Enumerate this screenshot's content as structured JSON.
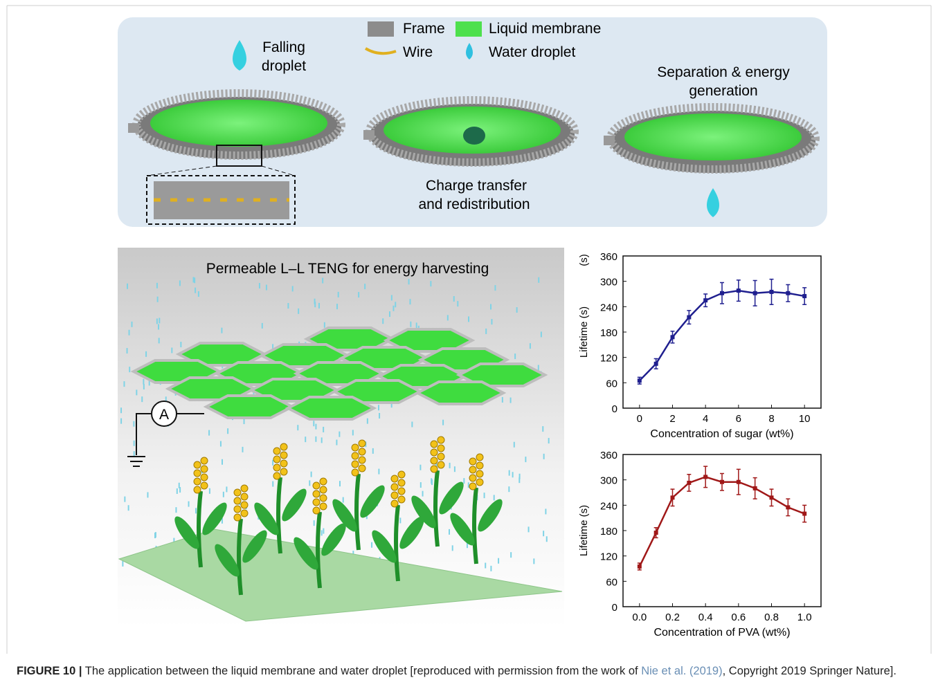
{
  "illustration": {
    "legend": [
      "Frame",
      "Liquid membrane",
      "Wire",
      "Water droplet"
    ],
    "falling_droplet": [
      "Falling",
      "droplet"
    ],
    "separation": [
      "Separation & energy",
      "generation"
    ],
    "charge_transfer": [
      "Charge transfer",
      "and redistribution"
    ],
    "teng_title": "Permeable L–L TENG for energy harvesting",
    "ammeter": "A"
  },
  "chart_data": [
    {
      "type": "line",
      "y_label": "Lifetime (s)",
      "y_label_extra": "(s)",
      "x_label": "Concentration of sugar (wt%)",
      "x": [
        0,
        1,
        2,
        3,
        4,
        5,
        6,
        7,
        8,
        9,
        10
      ],
      "series": [
        {
          "color": "#1f1f8f",
          "values": [
            65,
            105,
            168,
            215,
            255,
            272,
            278,
            272,
            275,
            272,
            265
          ],
          "errors": [
            8,
            12,
            14,
            16,
            15,
            25,
            25,
            30,
            30,
            20,
            20
          ]
        }
      ],
      "xlim": [
        -1,
        11
      ],
      "ylim": [
        0,
        360
      ],
      "xticks": [
        0,
        2,
        4,
        6,
        8,
        10
      ],
      "yticks": [
        0,
        60,
        120,
        180,
        240,
        300,
        360
      ]
    },
    {
      "type": "line",
      "y_label": "Lifetime (s)",
      "x_label": "Concentration of PVA (wt%)",
      "x": [
        0,
        0.1,
        0.2,
        0.3,
        0.4,
        0.5,
        0.6,
        0.7,
        0.8,
        0.9,
        1
      ],
      "series": [
        {
          "color": "#a01818",
          "values": [
            95,
            175,
            258,
            293,
            307,
            295,
            295,
            280,
            258,
            235,
            220
          ],
          "errors": [
            8,
            12,
            20,
            20,
            25,
            20,
            30,
            25,
            20,
            20,
            20
          ]
        }
      ],
      "xlim": [
        -0.1,
        1.1
      ],
      "ylim": [
        0,
        360
      ],
      "xticks": [
        {
          "value": 0,
          "label": "0.0"
        },
        0.2,
        0.4,
        0.6,
        0.8,
        {
          "value": 1,
          "label": "1.0"
        }
      ],
      "yticks": [
        0,
        60,
        120,
        180,
        240,
        300,
        360
      ]
    }
  ],
  "caption": {
    "label": "FIGURE 10 |",
    "text": " The application between the liquid membrane and water droplet [reproduced with permission from the work of ",
    "link": "Nie et al. (2019)",
    "text_end": ", Copyright 2019 Springer Nature]."
  }
}
